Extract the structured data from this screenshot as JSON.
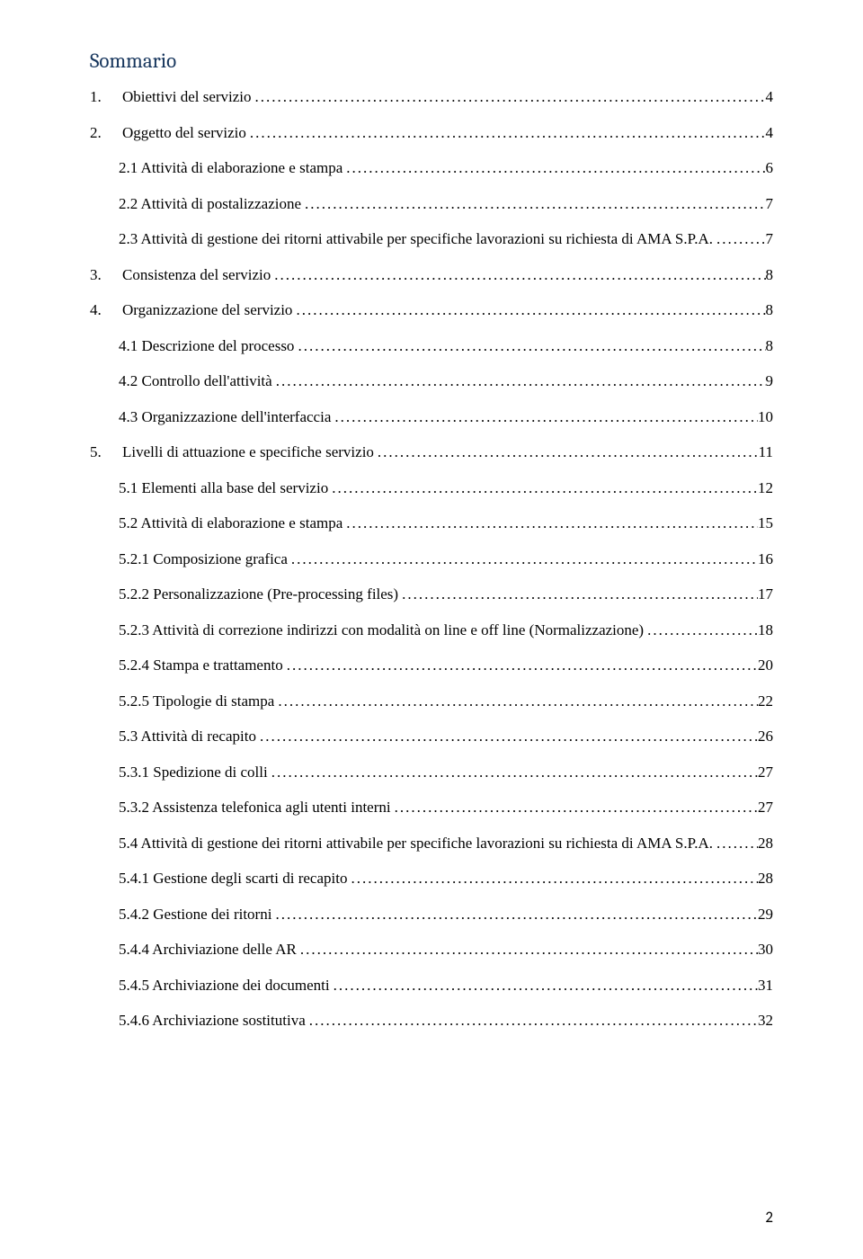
{
  "title": "Sommario",
  "footer_page": "2",
  "text_color": "#000000",
  "title_color": "#17365d",
  "background_color": "#ffffff",
  "fonts": {
    "body_family": "Times New Roman",
    "title_family": "Cambria",
    "body_size_pt": 12,
    "title_size_pt": 17
  },
  "entries": [
    {
      "indent": 0,
      "num": "1.",
      "text": "Obiettivi del servizio",
      "page": "4"
    },
    {
      "indent": 0,
      "num": "2.",
      "text": "Oggetto del servizio",
      "page": "4"
    },
    {
      "indent": 1,
      "num": "",
      "text": "2.1 Attività di elaborazione e stampa",
      "page": "6"
    },
    {
      "indent": 1,
      "num": "",
      "text": "2.2 Attività di postalizzazione",
      "page": "7"
    },
    {
      "indent": 1,
      "num": "",
      "text": "2.3 Attività di gestione dei ritorni attivabile per specifiche lavorazioni su richiesta di AMA S.P.A.",
      "page": "7"
    },
    {
      "indent": 0,
      "num": "3.",
      "text": "Consistenza del servizio",
      "page": "8"
    },
    {
      "indent": 0,
      "num": "4.",
      "text": "Organizzazione del servizio",
      "page": "8"
    },
    {
      "indent": 1,
      "num": "",
      "text": "4.1 Descrizione del processo",
      "page": "8"
    },
    {
      "indent": 1,
      "num": "",
      "text": "4.2 Controllo dell'attività",
      "page": "9"
    },
    {
      "indent": 1,
      "num": "",
      "text": "4.3 Organizzazione dell'interfaccia",
      "page": "10"
    },
    {
      "indent": 0,
      "num": "5.",
      "text": "Livelli di attuazione e specifiche servizio",
      "page": "11"
    },
    {
      "indent": 1,
      "num": "",
      "text": "5.1 Elementi alla base del servizio",
      "page": "12"
    },
    {
      "indent": 1,
      "num": "",
      "text": "5.2 Attività di elaborazione e stampa",
      "page": "15"
    },
    {
      "indent": 1,
      "num": "",
      "text": "5.2.1 Composizione grafica",
      "page": "16"
    },
    {
      "indent": 1,
      "num": "",
      "text": "5.2.2 Personalizzazione (Pre-processing files)",
      "page": "17"
    },
    {
      "indent": 1,
      "num": "",
      "text": "5.2.3 Attività di correzione indirizzi con modalità on line e off line (Normalizzazione)",
      "page": "18"
    },
    {
      "indent": 1,
      "num": "",
      "text": "5.2.4 Stampa e trattamento",
      "page": "20"
    },
    {
      "indent": 1,
      "num": "",
      "text": "5.2.5 Tipologie di stampa",
      "page": "22"
    },
    {
      "indent": 1,
      "num": "",
      "text": "5.3 Attività di recapito",
      "page": "26"
    },
    {
      "indent": 1,
      "num": "",
      "text": "5.3.1 Spedizione di colli",
      "page": "27"
    },
    {
      "indent": 1,
      "num": "",
      "text": "5.3.2 Assistenza telefonica agli utenti interni",
      "page": "27"
    },
    {
      "indent": 1,
      "num": "",
      "text": "5.4 Attività di gestione dei ritorni attivabile per specifiche lavorazioni su richiesta di AMA S.P.A.",
      "page": "28"
    },
    {
      "indent": 1,
      "num": "",
      "text": "5.4.1 Gestione degli scarti di recapito",
      "page": "28"
    },
    {
      "indent": 1,
      "num": "",
      "text": "5.4.2 Gestione dei ritorni",
      "page": "29"
    },
    {
      "indent": 1,
      "num": "",
      "text": "5.4.4 Archiviazione delle AR",
      "page": "30"
    },
    {
      "indent": 1,
      "num": "",
      "text": "5.4.5 Archiviazione dei documenti",
      "page": "31"
    },
    {
      "indent": 1,
      "num": "",
      "text": "5.4.6 Archiviazione sostitutiva",
      "page": "32"
    }
  ]
}
